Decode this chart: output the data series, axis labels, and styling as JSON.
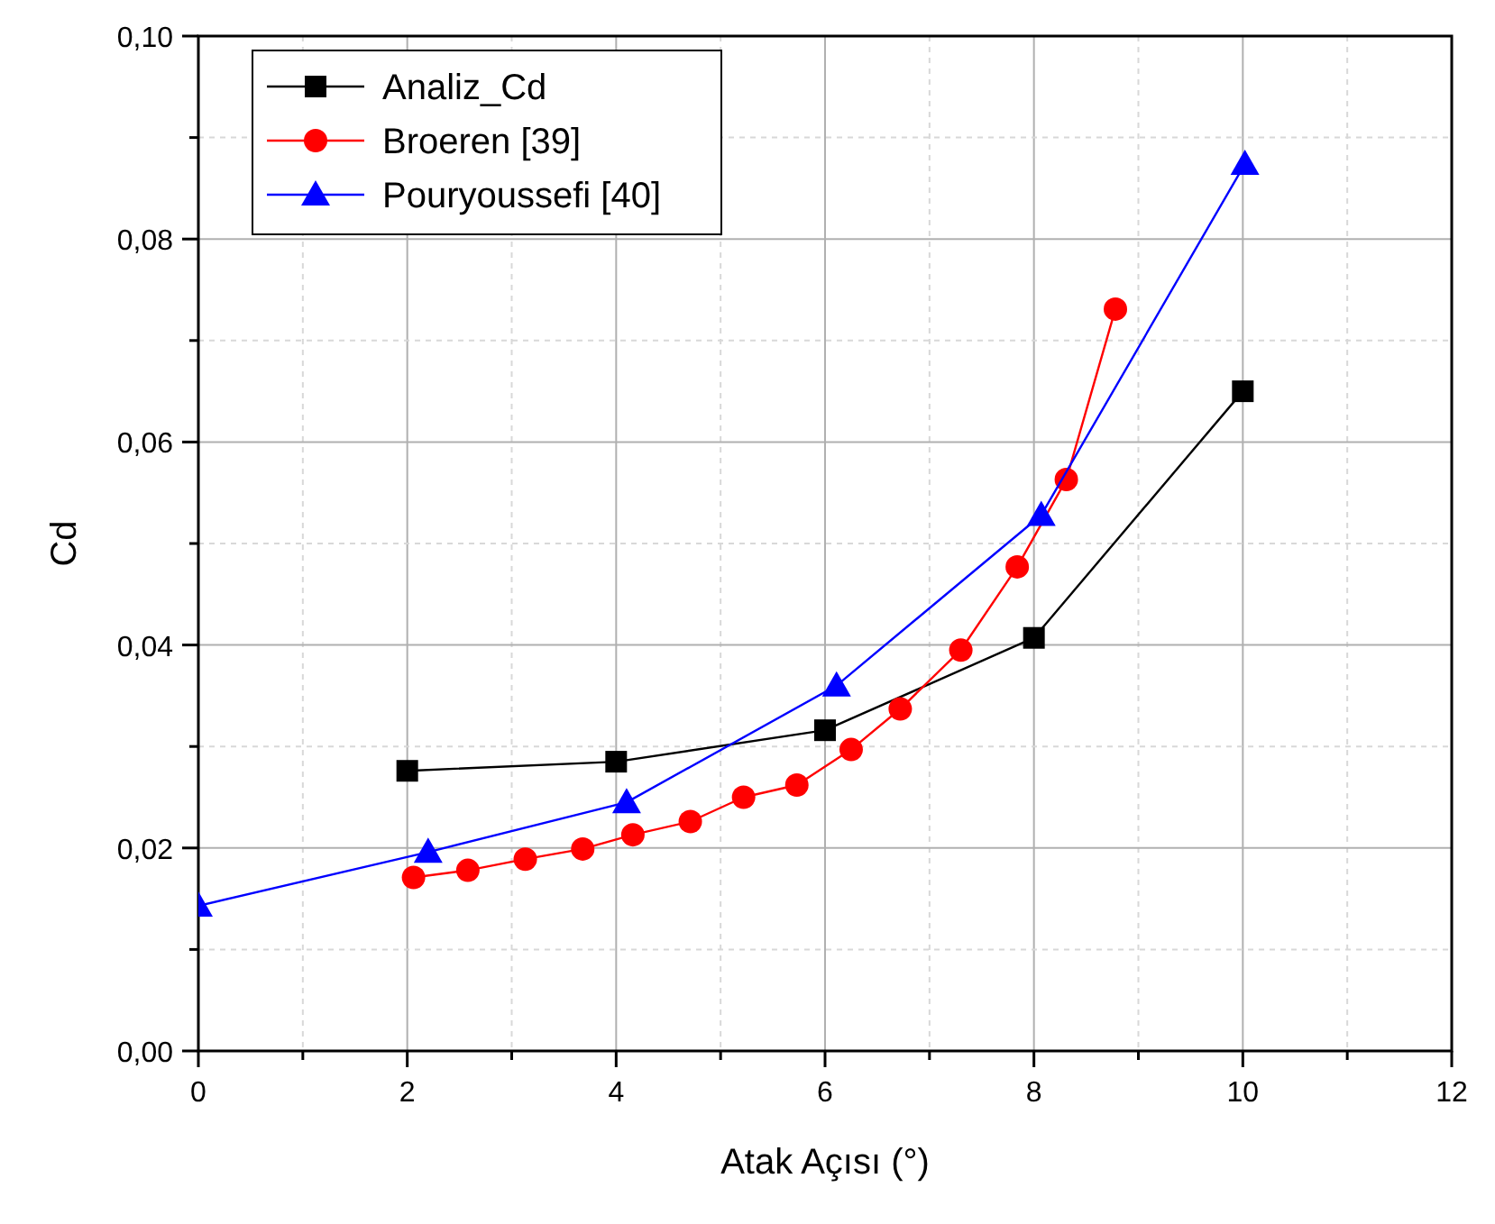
{
  "chart_data": {
    "type": "line",
    "xlabel": "Atak Açısı (°)",
    "ylabel": "Cd",
    "xlim": [
      0,
      12
    ],
    "ylim": [
      0,
      0.1
    ],
    "xticks": [
      0,
      {
        "value": 1,
        "label": null
      },
      2,
      {
        "value": 3,
        "label": null
      },
      4,
      {
        "value": 5,
        "label": null
      },
      6,
      {
        "value": 7,
        "label": null
      },
      8,
      {
        "value": 9,
        "label": null
      },
      10,
      {
        "value": 11,
        "label": null
      },
      12
    ],
    "yticks": [
      {
        "value": 0,
        "label": "0,00"
      },
      {
        "value": 0.01,
        "label": null
      },
      {
        "value": 0.02,
        "label": "0,02"
      },
      {
        "value": 0.03,
        "label": null
      },
      {
        "value": 0.04,
        "label": "0,04"
      },
      {
        "value": 0.05,
        "label": null
      },
      {
        "value": 0.06,
        "label": "0,06"
      },
      {
        "value": 0.07,
        "label": null
      },
      {
        "value": 0.08,
        "label": "0,08"
      },
      {
        "value": 0.09,
        "label": null
      },
      {
        "value": 0.1,
        "label": "0,10"
      }
    ],
    "grid": true,
    "legend": "top left",
    "line_style": "solid",
    "series": [
      {
        "name": "Analiz_Cd",
        "color": "#000000",
        "marker": "square",
        "x": [
          2,
          4,
          6,
          8,
          10
        ],
        "values": [
          0.0276,
          0.0285,
          0.0316,
          0.0407,
          0.065
        ]
      },
      {
        "name": "Broeren [39]",
        "color": "#ff0000",
        "marker": "circle",
        "x": [
          2.06,
          2.58,
          3.13,
          3.68,
          4.16,
          4.71,
          5.22,
          5.73,
          6.25,
          6.72,
          7.3,
          7.84,
          8.31,
          8.78
        ],
        "values": [
          0.0171,
          0.0178,
          0.0189,
          0.0199,
          0.0213,
          0.0226,
          0.025,
          0.0262,
          0.0297,
          0.0337,
          0.0395,
          0.0477,
          0.0563,
          0.0731
        ]
      },
      {
        "name": "Pouryoussefi [40]",
        "color": "#0000ff",
        "marker": "triangle",
        "x": [
          0,
          2.2,
          4.1,
          6.11,
          8.07,
          10.02
        ],
        "values": [
          0.0143,
          0.0196,
          0.0245,
          0.036,
          0.0528,
          0.0874
        ]
      }
    ]
  }
}
